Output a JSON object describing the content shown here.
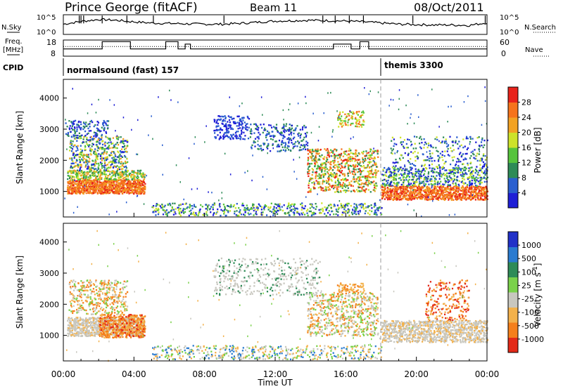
{
  "header": {
    "station": "Prince George (fitACF)",
    "beam": "Beam 11",
    "date": "08/Oct/2011"
  },
  "left_labels": {
    "nsky": "N.Sky",
    "freq": "Freq.",
    "freq_unit": "[MHz]",
    "cpid": "CPID"
  },
  "right_labels": {
    "nsearch": "N.Search",
    "nave": "Nave"
  },
  "noise_axis": {
    "ticks_left": [
      "10^5",
      "10^0"
    ],
    "ticks_right": [
      "10^5",
      "10^0"
    ]
  },
  "freq_axis": {
    "ticks_left": [
      "18",
      "8"
    ],
    "ticks_right": [
      "60",
      "0"
    ]
  },
  "cpid_segments": [
    {
      "label": "normalsound (fast) 157",
      "start_hour": 0
    },
    {
      "label": "themis 3300",
      "start_hour": 18.0
    }
  ],
  "xaxis": {
    "label": "Time UT",
    "ticks": [
      "00:00",
      "04:00",
      "08:00",
      "12:00",
      "16:00",
      "20:00",
      "00:00"
    ]
  },
  "panels": {
    "power": {
      "ylabel": "Slant Range [km]",
      "yticks": [
        "4000",
        "3000",
        "2000",
        "1000"
      ],
      "colorbar_label": "Power [dB]",
      "colorbar_ticks": [
        "28",
        "24",
        "20",
        "16",
        "12",
        "8",
        "4"
      ],
      "colors": [
        "#1f1fd6",
        "#2a5fcf",
        "#2e8b57",
        "#56c43c",
        "#cde22a",
        "#f2a223",
        "#f5731c",
        "#e8231b"
      ]
    },
    "velocity": {
      "ylabel": "Slant Range [km]",
      "yticks": [
        "4000",
        "3000",
        "2000",
        "1000"
      ],
      "colorbar_label": "Velocity [m s^-1]",
      "colorbar_ticks": [
        "1000",
        "500",
        "100",
        "25",
        "-25",
        "-100",
        "-500",
        "-1000"
      ],
      "colors": [
        "#2131c8",
        "#2a7bd0",
        "#2e8b57",
        "#7ad14a",
        "#c8c7bf",
        "#f3b14b",
        "#f57f1b",
        "#e32a19"
      ]
    }
  },
  "chart_data": [
    {
      "type": "line",
      "title": "N.Sky / N.Search noise",
      "x_range_hours": [
        0,
        24
      ],
      "ylim_log10": [
        0,
        5
      ],
      "series": [
        {
          "name": "N.Sky",
          "x": [
            0,
            1,
            2,
            3,
            4,
            5,
            6,
            7,
            8,
            9,
            10,
            11,
            12,
            13,
            14,
            15,
            16,
            17,
            18,
            19,
            20,
            21,
            22,
            23,
            24
          ],
          "y_log10": [
            2.6,
            3.3,
            3.8,
            3.6,
            3.2,
            2.9,
            2.8,
            2.7,
            2.6,
            2.6,
            2.8,
            3.1,
            3.4,
            3.5,
            3.6,
            3.5,
            3.4,
            3.2,
            2.9,
            2.6,
            2.5,
            2.4,
            2.4,
            2.3,
            3.0
          ]
        }
      ]
    },
    {
      "type": "line",
      "title": "Freq. / Nave",
      "x_range_hours": [
        0,
        24
      ],
      "ylim_freq_mhz": [
        8,
        18
      ],
      "ylim_nave": [
        0,
        60
      ],
      "series": [
        {
          "name": "Freq.",
          "x": [
            0,
            2.2,
            2.2,
            3.8,
            3.8,
            5.8,
            5.8,
            6.5,
            6.5,
            6.9,
            6.9,
            7.2,
            7.2,
            15.3,
            15.3,
            16.3,
            16.3,
            16.8,
            16.8,
            17.3,
            17.3,
            17.8,
            17.8,
            24
          ],
          "y": [
            12.5,
            12.5,
            17.0,
            17.0,
            12.5,
            12.5,
            17.0,
            17.0,
            12.5,
            12.5,
            15.5,
            15.5,
            12.5,
            12.5,
            15.5,
            15.5,
            12.5,
            12.5,
            17.0,
            17.0,
            12.5,
            12.5,
            12.5,
            12.5
          ]
        },
        {
          "name": "Nave",
          "x": [
            0,
            24
          ],
          "y": [
            36,
            36
          ]
        }
      ]
    },
    {
      "type": "heatmap",
      "title": "Power [dB]",
      "x": "time UT hours 0-24",
      "y": "slant range km 180-4600",
      "zlim": [
        0,
        30
      ],
      "features": [
        {
          "t_hours": [
            0.2,
            4.6
          ],
          "range_km": [
            900,
            1500
          ],
          "power_db": 24
        },
        {
          "t_hours": [
            0.5,
            3.5
          ],
          "range_km": [
            1600,
            2700
          ],
          "power_db": 18
        },
        {
          "t_hours": [
            8.5,
            14.5
          ],
          "range_km": [
            2000,
            3500
          ],
          "power_db": 8
        },
        {
          "t_hours": [
            13.8,
            17.8
          ],
          "range_km": [
            1000,
            2400
          ],
          "power_db": 22
        },
        {
          "t_hours": [
            18.0,
            24.0
          ],
          "range_km": [
            800,
            1500
          ],
          "power_db": 22
        },
        {
          "t_hours": [
            5.0,
            18.0
          ],
          "range_km": [
            250,
            700
          ],
          "power_db": 6
        }
      ]
    },
    {
      "type": "heatmap",
      "title": "Velocity [m s^-1]",
      "x": "time UT hours 0-24",
      "y": "slant range km 180-4600",
      "zlim": [
        -1000,
        1000
      ],
      "features": [
        {
          "t_hours": [
            0.2,
            4.6
          ],
          "range_km": [
            1000,
            1500
          ],
          "velocity": 0
        },
        {
          "t_hours": [
            2.0,
            4.6
          ],
          "range_km": [
            900,
            1700
          ],
          "velocity": -300
        },
        {
          "t_hours": [
            8.5,
            14.5
          ],
          "range_km": [
            2000,
            3500
          ],
          "velocity": 0
        },
        {
          "t_hours": [
            13.8,
            17.8
          ],
          "range_km": [
            1000,
            2400
          ],
          "velocity": 0
        },
        {
          "t_hours": [
            18.0,
            24.0
          ],
          "range_km": [
            800,
            1500
          ],
          "velocity": 0
        },
        {
          "t_hours": [
            20.5,
            22.5
          ],
          "range_km": [
            1500,
            2800
          ],
          "velocity": -400
        }
      ]
    }
  ]
}
